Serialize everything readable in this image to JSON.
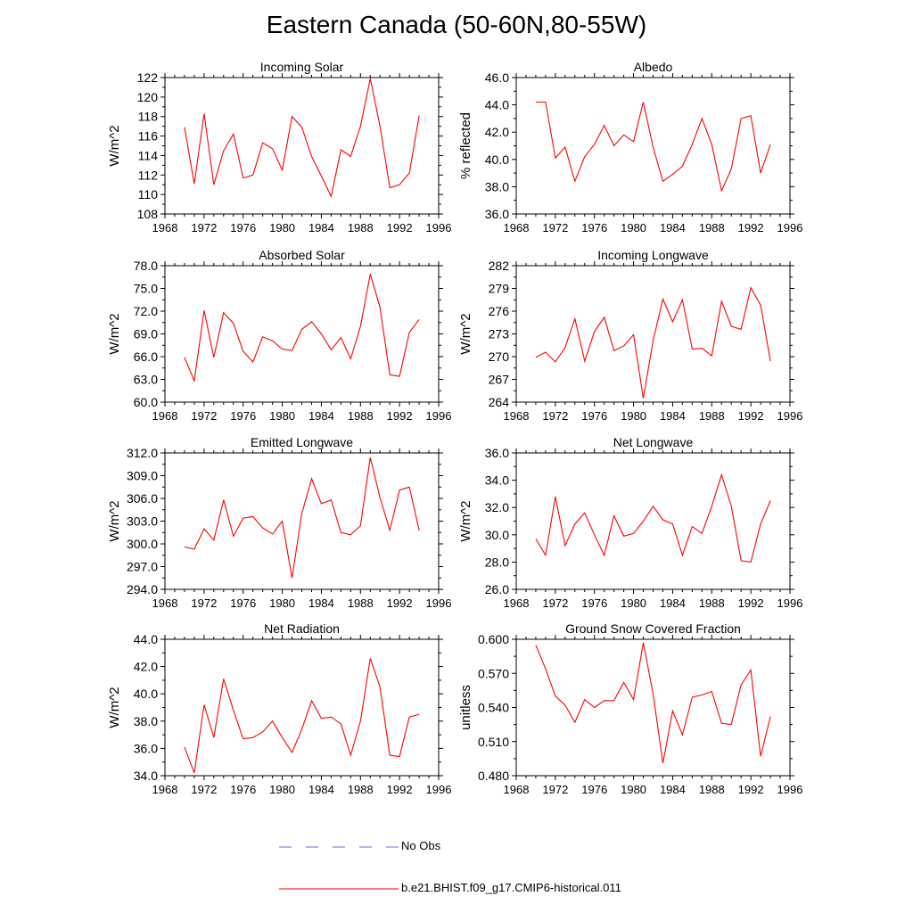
{
  "figure_title": "Eastern Canada (50-60N,80-55W)",
  "legend": {
    "obs_label": "No Obs",
    "obs_color": "#6a6ad8",
    "model_label": "b.e21.BHIST.f09_g17.CMIP6-historical.011",
    "model_color": "#ff0000"
  },
  "chart_data": [
    {
      "type": "line",
      "title": "Incoming Solar",
      "ylabel": "W/m^2",
      "xlim": [
        1968,
        1996
      ],
      "xticks": [
        "1968",
        "1972",
        "1976",
        "1980",
        "1984",
        "1988",
        "1992",
        "1996"
      ],
      "ylim": [
        108,
        122
      ],
      "yticks": [
        "108",
        "110",
        "112",
        "114",
        "116",
        "118",
        "120",
        "122"
      ],
      "series": [
        {
          "x": [
            1970,
            1971,
            1972,
            1973,
            1974,
            1975,
            1976,
            1977,
            1978,
            1979,
            1980,
            1981,
            1982,
            1983,
            1984,
            1985,
            1986,
            1987,
            1988,
            1989,
            1990,
            1991,
            1992,
            1993,
            1994
          ],
          "values": [
            116.9,
            111.1,
            118.3,
            111.0,
            114.5,
            116.2,
            111.7,
            112.0,
            115.3,
            114.7,
            112.5,
            118.0,
            116.9,
            113.9,
            111.9,
            109.8,
            114.6,
            113.9,
            117.0,
            121.9,
            117.0,
            110.7,
            111.0,
            112.2,
            118.1
          ]
        }
      ]
    },
    {
      "type": "line",
      "title": "Albedo",
      "ylabel": "% reflected",
      "xlim": [
        1968,
        1996
      ],
      "xticks": [
        "1968",
        "1972",
        "1976",
        "1980",
        "1984",
        "1988",
        "1992",
        "1996"
      ],
      "ylim": [
        36,
        46
      ],
      "yticks": [
        "36.0",
        "38.0",
        "40.0",
        "42.0",
        "44.0",
        "46.0"
      ],
      "series": [
        {
          "x": [
            1970,
            1971,
            1972,
            1973,
            1974,
            1975,
            1976,
            1977,
            1978,
            1979,
            1980,
            1981,
            1982,
            1983,
            1984,
            1985,
            1986,
            1987,
            1988,
            1989,
            1990,
            1991,
            1992,
            1993,
            1994
          ],
          "values": [
            44.2,
            44.2,
            40.1,
            40.9,
            38.4,
            40.2,
            41.1,
            42.5,
            41.0,
            41.8,
            41.3,
            44.2,
            40.9,
            38.4,
            38.9,
            39.5,
            41.1,
            43.0,
            41.1,
            37.7,
            39.3,
            43.0,
            43.2,
            39.0,
            41.1
          ]
        }
      ]
    },
    {
      "type": "line",
      "title": "Absorbed Solar",
      "ylabel": "W/m^2",
      "xlim": [
        1968,
        1996
      ],
      "xticks": [
        "1968",
        "1972",
        "1976",
        "1980",
        "1984",
        "1988",
        "1992",
        "1996"
      ],
      "ylim": [
        60,
        78
      ],
      "yticks": [
        "60.0",
        "63.0",
        "66.0",
        "69.0",
        "72.0",
        "75.0",
        "78.0"
      ],
      "series": [
        {
          "x": [
            1970,
            1971,
            1972,
            1973,
            1974,
            1975,
            1976,
            1977,
            1978,
            1979,
            1980,
            1981,
            1982,
            1983,
            1984,
            1985,
            1986,
            1987,
            1988,
            1989,
            1990,
            1991,
            1992,
            1993,
            1994
          ],
          "values": [
            65.9,
            62.8,
            72.1,
            65.9,
            71.8,
            70.4,
            66.7,
            65.3,
            68.6,
            68.1,
            67.0,
            66.8,
            69.6,
            70.6,
            69.0,
            66.9,
            68.5,
            65.7,
            70.0,
            76.9,
            72.5,
            63.6,
            63.4,
            69.2,
            70.9
          ]
        }
      ]
    },
    {
      "type": "line",
      "title": "Incoming Longwave",
      "ylabel": "W/m^2",
      "xlim": [
        1968,
        1996
      ],
      "xticks": [
        "1968",
        "1972",
        "1976",
        "1980",
        "1984",
        "1988",
        "1992",
        "1996"
      ],
      "ylim": [
        264,
        282
      ],
      "yticks": [
        "264",
        "267",
        "270",
        "273",
        "276",
        "279",
        "282"
      ],
      "series": [
        {
          "x": [
            1970,
            1971,
            1972,
            1973,
            1974,
            1975,
            1976,
            1977,
            1978,
            1979,
            1980,
            1981,
            1982,
            1983,
            1984,
            1985,
            1986,
            1987,
            1988,
            1989,
            1990,
            1991,
            1992,
            1993,
            1994
          ],
          "values": [
            269.9,
            270.6,
            269.3,
            271.2,
            275.0,
            269.4,
            273.3,
            275.2,
            270.8,
            271.4,
            272.9,
            264.5,
            272.1,
            277.6,
            274.6,
            277.5,
            271.0,
            271.1,
            270.1,
            277.3,
            274.0,
            273.6,
            279.1,
            276.8,
            269.4
          ]
        }
      ]
    },
    {
      "type": "line",
      "title": "Emitted Longwave",
      "ylabel": "W/m^2",
      "xlim": [
        1968,
        1996
      ],
      "xticks": [
        "1968",
        "1972",
        "1976",
        "1980",
        "1984",
        "1988",
        "1992",
        "1996"
      ],
      "ylim": [
        294,
        312
      ],
      "yticks": [
        "294.0",
        "297.0",
        "300.0",
        "303.0",
        "306.0",
        "309.0",
        "312.0"
      ],
      "series": [
        {
          "x": [
            1970,
            1971,
            1972,
            1973,
            1974,
            1975,
            1976,
            1977,
            1978,
            1979,
            1980,
            1981,
            1982,
            1983,
            1984,
            1985,
            1986,
            1987,
            1988,
            1989,
            1990,
            1991,
            1992,
            1993,
            1994
          ],
          "values": [
            299.6,
            299.3,
            302.0,
            300.5,
            305.8,
            301.0,
            303.4,
            303.6,
            302.1,
            301.3,
            303.0,
            295.5,
            304.0,
            308.6,
            305.3,
            305.8,
            301.5,
            301.2,
            302.4,
            311.4,
            306.1,
            301.8,
            307.1,
            307.5,
            301.8
          ]
        }
      ]
    },
    {
      "type": "line",
      "title": "Net Longwave",
      "ylabel": "W/m^2",
      "xlim": [
        1968,
        1996
      ],
      "xticks": [
        "1968",
        "1972",
        "1976",
        "1980",
        "1984",
        "1988",
        "1992",
        "1996"
      ],
      "ylim": [
        26,
        36
      ],
      "yticks": [
        "26.0",
        "28.0",
        "30.0",
        "32.0",
        "34.0",
        "36.0"
      ],
      "series": [
        {
          "x": [
            1970,
            1971,
            1972,
            1973,
            1974,
            1975,
            1976,
            1977,
            1978,
            1979,
            1980,
            1981,
            1982,
            1983,
            1984,
            1985,
            1986,
            1987,
            1988,
            1989,
            1990,
            1991,
            1992,
            1993,
            1994
          ],
          "values": [
            29.7,
            28.5,
            32.8,
            29.2,
            30.8,
            31.6,
            30.0,
            28.5,
            31.4,
            29.9,
            30.1,
            31.0,
            32.1,
            31.1,
            30.8,
            28.5,
            30.6,
            30.1,
            32.1,
            34.4,
            32.1,
            28.1,
            28.0,
            30.8,
            32.5
          ]
        }
      ]
    },
    {
      "type": "line",
      "title": "Net Radiation",
      "ylabel": "W/m^2",
      "xlim": [
        1968,
        1996
      ],
      "xticks": [
        "1968",
        "1972",
        "1976",
        "1980",
        "1984",
        "1988",
        "1992",
        "1996"
      ],
      "ylim": [
        34,
        44
      ],
      "yticks": [
        "34.0",
        "36.0",
        "38.0",
        "40.0",
        "42.0",
        "44.0"
      ],
      "series": [
        {
          "x": [
            1970,
            1971,
            1972,
            1973,
            1974,
            1975,
            1976,
            1977,
            1978,
            1979,
            1980,
            1981,
            1982,
            1983,
            1984,
            1985,
            1986,
            1987,
            1988,
            1989,
            1990,
            1991,
            1992,
            1993,
            1994
          ],
          "values": [
            36.1,
            34.2,
            39.2,
            36.8,
            41.1,
            38.8,
            36.7,
            36.8,
            37.2,
            38.0,
            36.8,
            35.7,
            37.4,
            39.5,
            38.2,
            38.3,
            37.8,
            35.5,
            38.0,
            42.6,
            40.5,
            35.5,
            35.4,
            38.3,
            38.5
          ]
        }
      ]
    },
    {
      "type": "line",
      "title": "Ground Snow Covered Fraction",
      "ylabel": "unitless",
      "xlim": [
        1968,
        1996
      ],
      "xticks": [
        "1968",
        "1972",
        "1976",
        "1980",
        "1984",
        "1988",
        "1992",
        "1996"
      ],
      "ylim": [
        0.48,
        0.6
      ],
      "yticks": [
        "0.480",
        "0.510",
        "0.540",
        "0.570",
        "0.600"
      ],
      "series": [
        {
          "x": [
            1970,
            1971,
            1972,
            1973,
            1974,
            1975,
            1976,
            1977,
            1978,
            1979,
            1980,
            1981,
            1982,
            1983,
            1984,
            1985,
            1986,
            1987,
            1988,
            1989,
            1990,
            1991,
            1992,
            1993,
            1994
          ],
          "values": [
            0.595,
            0.574,
            0.55,
            0.542,
            0.527,
            0.547,
            0.54,
            0.546,
            0.546,
            0.562,
            0.547,
            0.597,
            0.552,
            0.491,
            0.537,
            0.516,
            0.549,
            0.551,
            0.554,
            0.526,
            0.525,
            0.56,
            0.573,
            0.497,
            0.532
          ]
        }
      ]
    }
  ]
}
